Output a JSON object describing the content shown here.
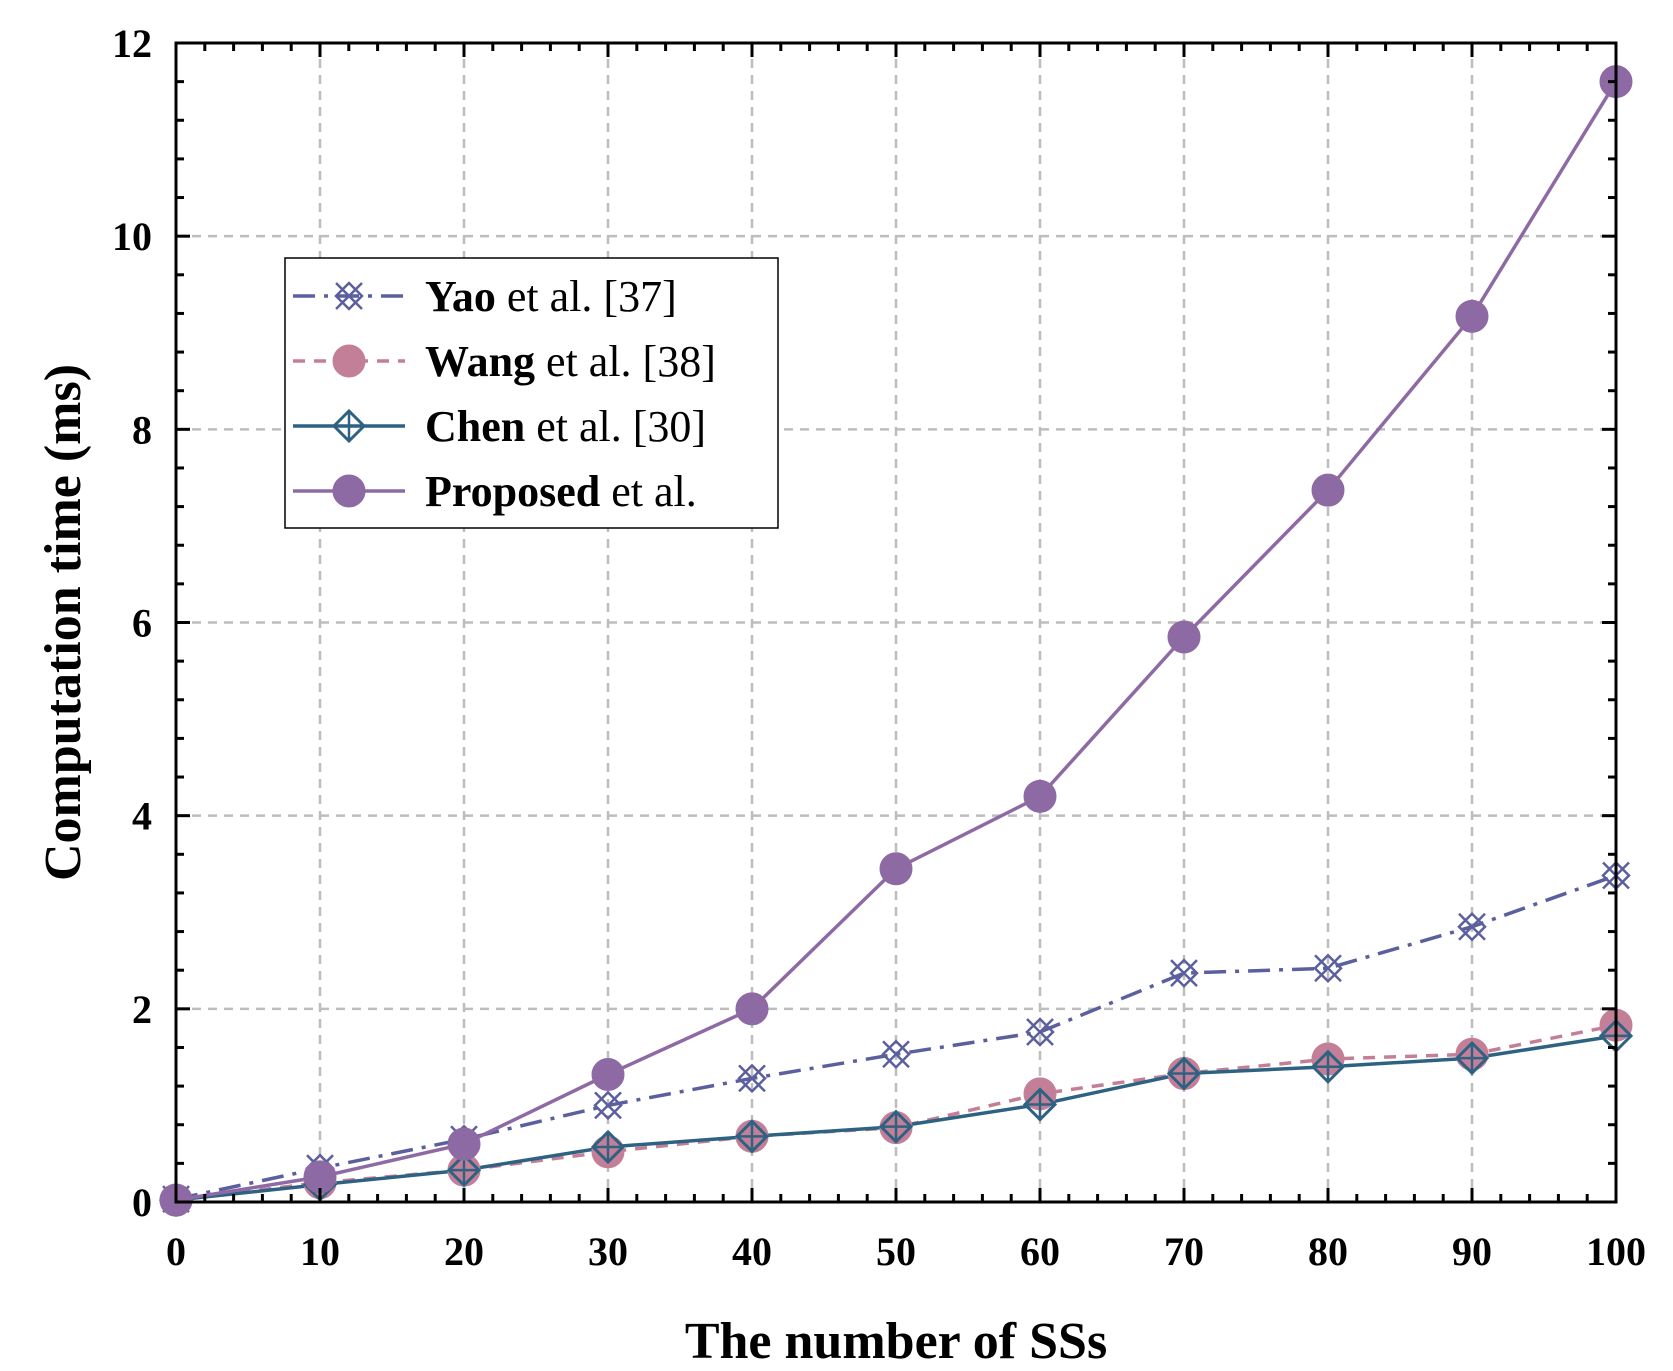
{
  "chart_data": {
    "type": "line",
    "title": "",
    "xlabel": "The number of SSs",
    "ylabel": "Computation time (ms)",
    "xlim": [
      0,
      100
    ],
    "ylim": [
      0,
      12
    ],
    "xticks": [
      0,
      10,
      20,
      30,
      40,
      50,
      60,
      70,
      80,
      90,
      100
    ],
    "yticks": [
      0,
      2,
      4,
      6,
      8,
      10,
      12
    ],
    "grid": true,
    "legend_position": "upper-left",
    "x": [
      0,
      10,
      20,
      30,
      40,
      50,
      60,
      70,
      80,
      90,
      100
    ],
    "series": [
      {
        "name": "Yao et al. [37]",
        "legend_bold": "Yao",
        "legend_rest": " et al. [37]",
        "color": "#5b5f9e",
        "line_style": "dash-dot",
        "marker": "x-diamond",
        "values": [
          0.03,
          0.35,
          0.65,
          1.0,
          1.28,
          1.53,
          1.76,
          2.37,
          2.42,
          2.85,
          3.38
        ]
      },
      {
        "name": "Wang et al. [38]",
        "legend_bold": "Wang",
        "legend_rest": " et al. [38]",
        "color": "#c47f98",
        "line_style": "dashed",
        "marker": "circle",
        "values": [
          0.02,
          0.2,
          0.33,
          0.52,
          0.68,
          0.77,
          1.12,
          1.33,
          1.48,
          1.53,
          1.83
        ]
      },
      {
        "name": "Chen et al. [30]",
        "legend_bold": "Chen",
        "legend_rest": " et al. [30]",
        "color": "#2e6282",
        "line_style": "solid",
        "marker": "diamond",
        "values": [
          0.02,
          0.18,
          0.33,
          0.57,
          0.68,
          0.78,
          1.01,
          1.33,
          1.4,
          1.49,
          1.72
        ]
      },
      {
        "name": "Proposed et al.",
        "legend_bold": "Proposed",
        "legend_rest": " et al.",
        "color": "#8e6aa4",
        "line_style": "solid",
        "marker": "circle",
        "values": [
          0.02,
          0.26,
          0.6,
          1.32,
          2.0,
          3.45,
          4.2,
          5.85,
          7.37,
          9.17,
          11.6
        ]
      }
    ]
  }
}
